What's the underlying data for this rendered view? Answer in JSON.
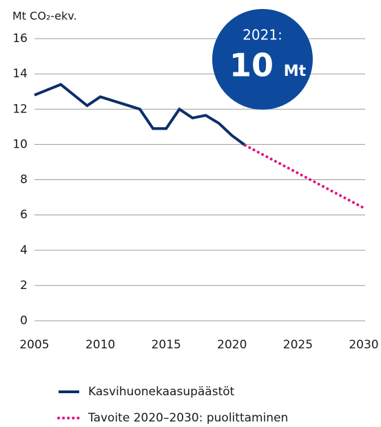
{
  "chart_data": {
    "type": "line",
    "y_label": "Mt CO₂-ekv.",
    "annotation": {
      "year": "2021:",
      "value": "10",
      "unit": "Mt"
    },
    "series": [
      {
        "name": "Kasvihuonekaasupäästöt",
        "color": "#0b2f6b",
        "style": "solid",
        "x": [
          2005,
          2007,
          2009,
          2010,
          2013,
          2014,
          2015,
          2016,
          2017,
          2018,
          2019,
          2020,
          2021
        ],
        "values": [
          12.8,
          13.4,
          12.2,
          12.7,
          12.0,
          10.9,
          10.9,
          12.0,
          11.5,
          11.65,
          11.2,
          10.5,
          9.95
        ]
      },
      {
        "name": "Tavoite 2020–2030: puolittaminen",
        "color": "#e0147f",
        "style": "dotted",
        "x": [
          2021,
          2030
        ],
        "values": [
          9.95,
          6.4
        ]
      }
    ],
    "xlim": [
      2005,
      2030
    ],
    "xticks": [
      2005,
      2010,
      2015,
      2020,
      2025,
      2030
    ],
    "ylim": [
      0,
      16
    ],
    "yticks": [
      0,
      2,
      4,
      6,
      8,
      10,
      12,
      14,
      16
    ],
    "grid": true
  }
}
